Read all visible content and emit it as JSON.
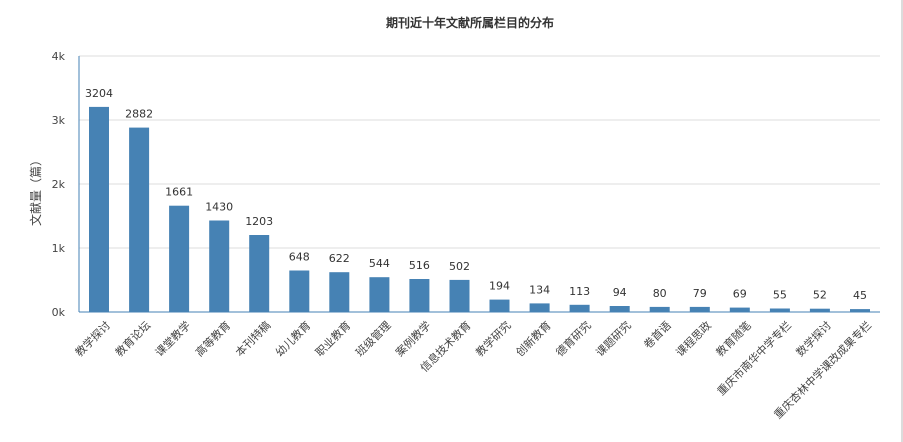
{
  "chart_data": {
    "type": "bar",
    "title": "期刊近十年文献所属栏目的分布",
    "xlabel": "",
    "ylabel": "文献量（篇）",
    "ylim": [
      0,
      4000
    ],
    "yticks": [
      {
        "value": 0,
        "label": "0k"
      },
      {
        "value": 1000,
        "label": "1k"
      },
      {
        "value": 2000,
        "label": "2k"
      },
      {
        "value": 3000,
        "label": "3k"
      },
      {
        "value": 4000,
        "label": "4k"
      }
    ],
    "grid": true,
    "legend": "none",
    "bar_color": "#4682b4",
    "categories": [
      "教学探讨",
      "教育论坛",
      "课堂教学",
      "高等教育",
      "本刊特稿",
      "幼儿教育",
      "职业教育",
      "班级管理",
      "案例教学",
      "信息技术教育",
      "教学研究",
      "创新教育",
      "德育研究",
      "课题研究",
      "卷首语",
      "课程思政",
      "教育随笔",
      "重庆市南华中学专栏",
      "数学探讨",
      "重庆杏林中学课改成果专栏"
    ],
    "values": [
      3204,
      2882,
      1661,
      1430,
      1203,
      648,
      622,
      544,
      516,
      502,
      194,
      134,
      113,
      94,
      80,
      79,
      69,
      55,
      52,
      45
    ]
  }
}
